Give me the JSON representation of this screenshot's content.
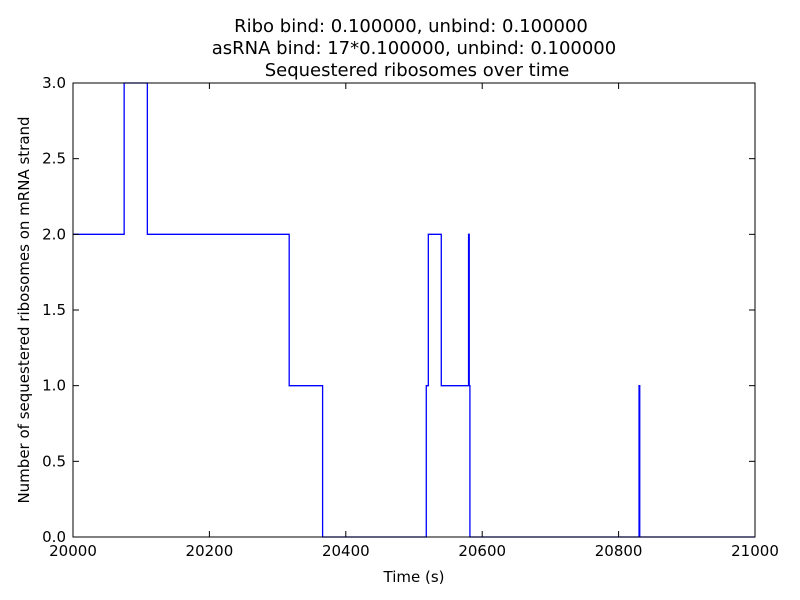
{
  "chart_data": {
    "type": "line",
    "title_lines": [
      "Ribo bind: 0.100000, unbind: 0.100000",
      "asRNA bind: 17*0.100000, unbind: 0.100000",
      "Sequestered ribosomes over time"
    ],
    "xlabel": "Time (s)",
    "ylabel": "Number of sequestered ribosomes on mRNA strand",
    "xlim": [
      20000,
      21000
    ],
    "ylim": [
      0,
      3
    ],
    "xticks": [
      "20000",
      "20200",
      "20400",
      "20600",
      "20800",
      "21000"
    ],
    "yticks": [
      "0.0",
      "0.5",
      "1.0",
      "1.5",
      "2.0",
      "2.5",
      "3.0"
    ],
    "grid": false,
    "line_color": "#0000ff",
    "series": [
      {
        "step": "post",
        "x": [
          20000,
          20075,
          20109,
          20317,
          20366,
          20518,
          20521,
          20540,
          20580,
          20581,
          20582,
          20830,
          20831,
          21000
        ],
        "y": [
          2,
          3,
          2,
          1,
          0,
          1,
          2,
          1,
          2,
          1,
          0,
          1,
          0,
          0
        ]
      }
    ]
  }
}
